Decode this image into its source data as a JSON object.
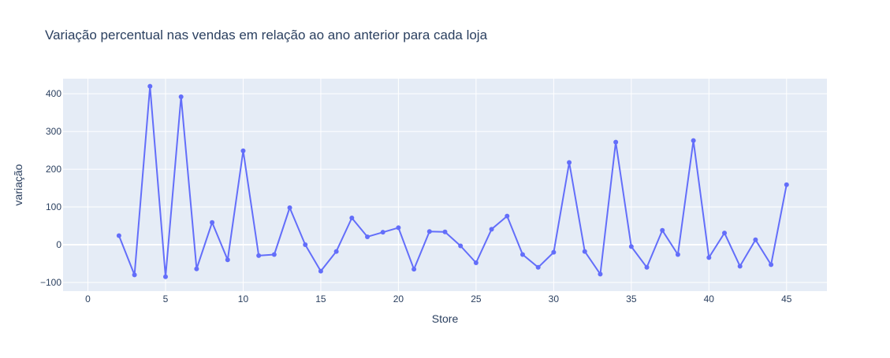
{
  "chart_data": {
    "type": "line",
    "title": "Variação percentual nas vendas em relação ao ano anterior para cada loja",
    "xlabel": "Store",
    "ylabel": "variação",
    "xlim": [
      -1.6,
      47.6
    ],
    "ylim": [
      -123,
      440
    ],
    "x_ticks": [
      0,
      5,
      10,
      15,
      20,
      25,
      30,
      35,
      40,
      45
    ],
    "y_ticks": [
      -100,
      0,
      100,
      200,
      300,
      400
    ],
    "grid": true,
    "line_color": "#636efa",
    "plot_bg": "#e5ecf6",
    "series": [
      {
        "x": [
          2,
          3,
          4,
          5,
          6,
          7,
          8,
          9,
          10,
          11,
          12,
          13,
          14,
          15,
          16,
          17,
          18,
          19,
          20,
          21,
          22,
          23,
          24,
          25,
          26,
          27,
          28,
          29,
          30,
          31,
          32,
          33,
          34,
          35,
          36,
          37,
          38,
          39,
          40,
          41,
          42,
          43,
          44,
          45
        ],
        "values": [
          24,
          -80,
          420,
          -85,
          392,
          -64,
          59,
          -40,
          249,
          -29,
          -26,
          98,
          0,
          -70,
          -18,
          71,
          21,
          33,
          45,
          -65,
          35,
          34,
          -3,
          -48,
          41,
          76,
          -26,
          -60,
          -20,
          218,
          -18,
          -78,
          272,
          -5,
          -60,
          38,
          -26,
          276,
          -34,
          31,
          -57,
          13,
          -53,
          159
        ]
      }
    ]
  }
}
